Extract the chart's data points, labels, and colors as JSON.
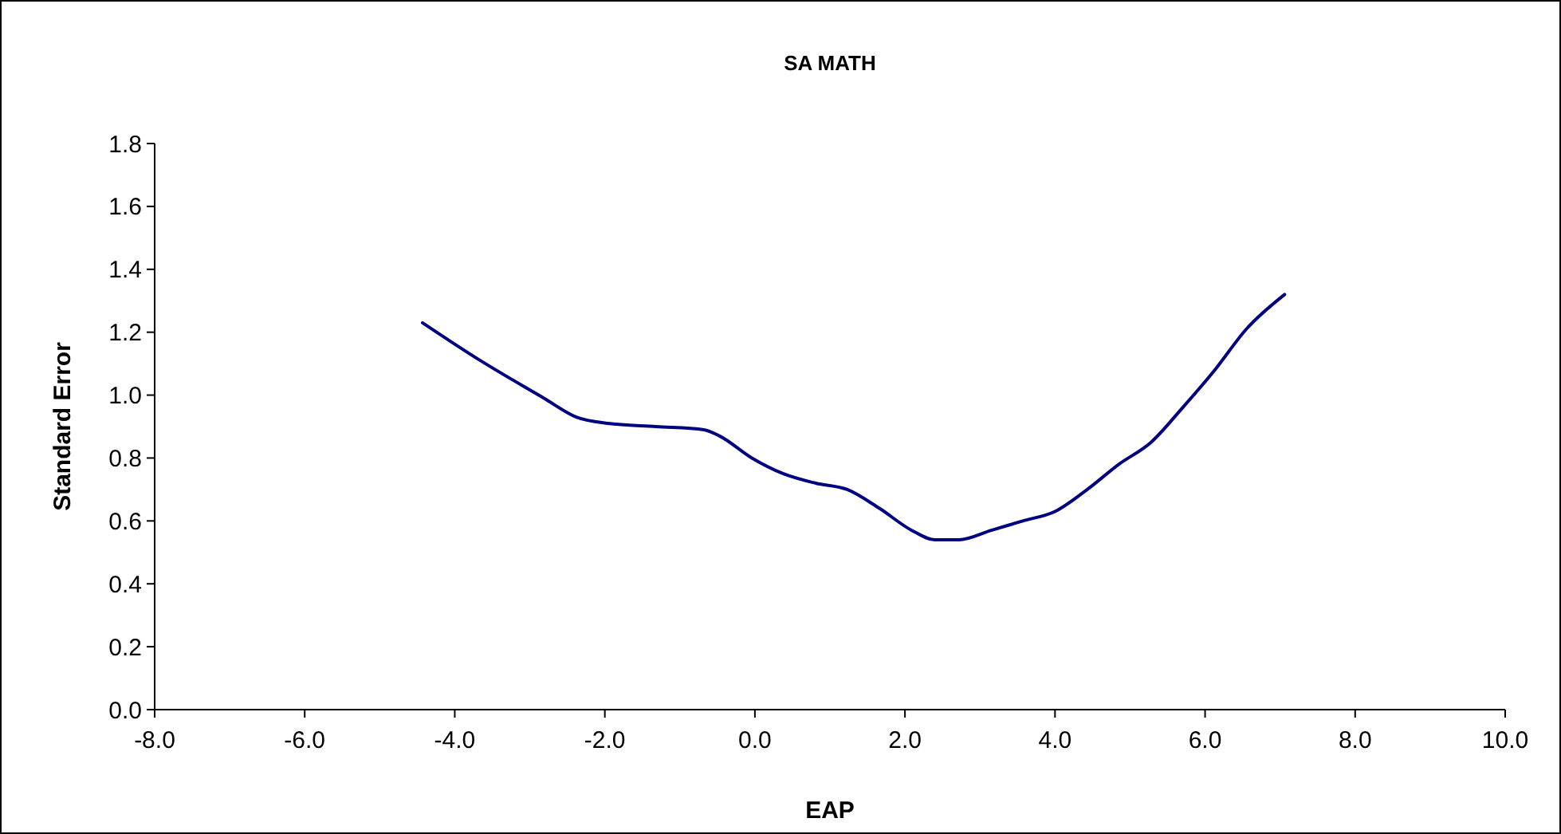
{
  "chart_data": {
    "type": "line",
    "title": "SA MATH",
    "xlabel": "EAP",
    "ylabel": "Standard Error",
    "xlim": [
      -8,
      10
    ],
    "xticks": [
      {
        "value": -8,
        "label": "-8.0"
      },
      {
        "value": -6,
        "label": "-6.0"
      },
      {
        "value": -4,
        "label": "-4.0"
      },
      {
        "value": -2,
        "label": "-2.0"
      },
      {
        "value": 0,
        "label": "0.0"
      },
      {
        "value": 2,
        "label": "2.0"
      },
      {
        "value": 4,
        "label": "4.0"
      },
      {
        "value": 6,
        "label": "6.0"
      },
      {
        "value": 8,
        "label": "8.0"
      },
      {
        "value": 10,
        "label": "10.0"
      }
    ],
    "ylim": [
      0,
      1.8
    ],
    "yticks": [
      {
        "value": 0,
        "label": "0.0"
      },
      {
        "value": 0.2,
        "label": "0.2"
      },
      {
        "value": 0.4,
        "label": "0.4"
      },
      {
        "value": 0.6,
        "label": "0.6"
      },
      {
        "value": 0.8,
        "label": "0.8"
      },
      {
        "value": 1,
        "label": "1.0"
      },
      {
        "value": 1.2,
        "label": "1.2"
      },
      {
        "value": 1.4,
        "label": "1.4"
      },
      {
        "value": 1.6,
        "label": "1.6"
      },
      {
        "value": 1.8,
        "label": "1.8"
      }
    ],
    "grid": false,
    "marker": "none",
    "line_style": "solid",
    "series": [
      {
        "color": "#000080",
        "x": [
          -4.43,
          -3.66,
          -2.81,
          -2.38,
          -1.96,
          -1.32,
          -0.68,
          -0.47,
          -0.04,
          0.38,
          0.81,
          1.23,
          1.66,
          2.09,
          2.4,
          2.72,
          3.15,
          3.57,
          4.0,
          4.43,
          4.85,
          5.28,
          5.7,
          6.13,
          6.55,
          7.06
        ],
        "values": [
          1.23,
          1.11,
          0.99,
          0.93,
          0.91,
          0.9,
          0.89,
          0.87,
          0.8,
          0.75,
          0.72,
          0.7,
          0.64,
          0.57,
          0.54,
          0.54,
          0.57,
          0.6,
          0.63,
          0.7,
          0.78,
          0.85,
          0.96,
          1.08,
          1.21,
          1.32
        ]
      }
    ]
  }
}
